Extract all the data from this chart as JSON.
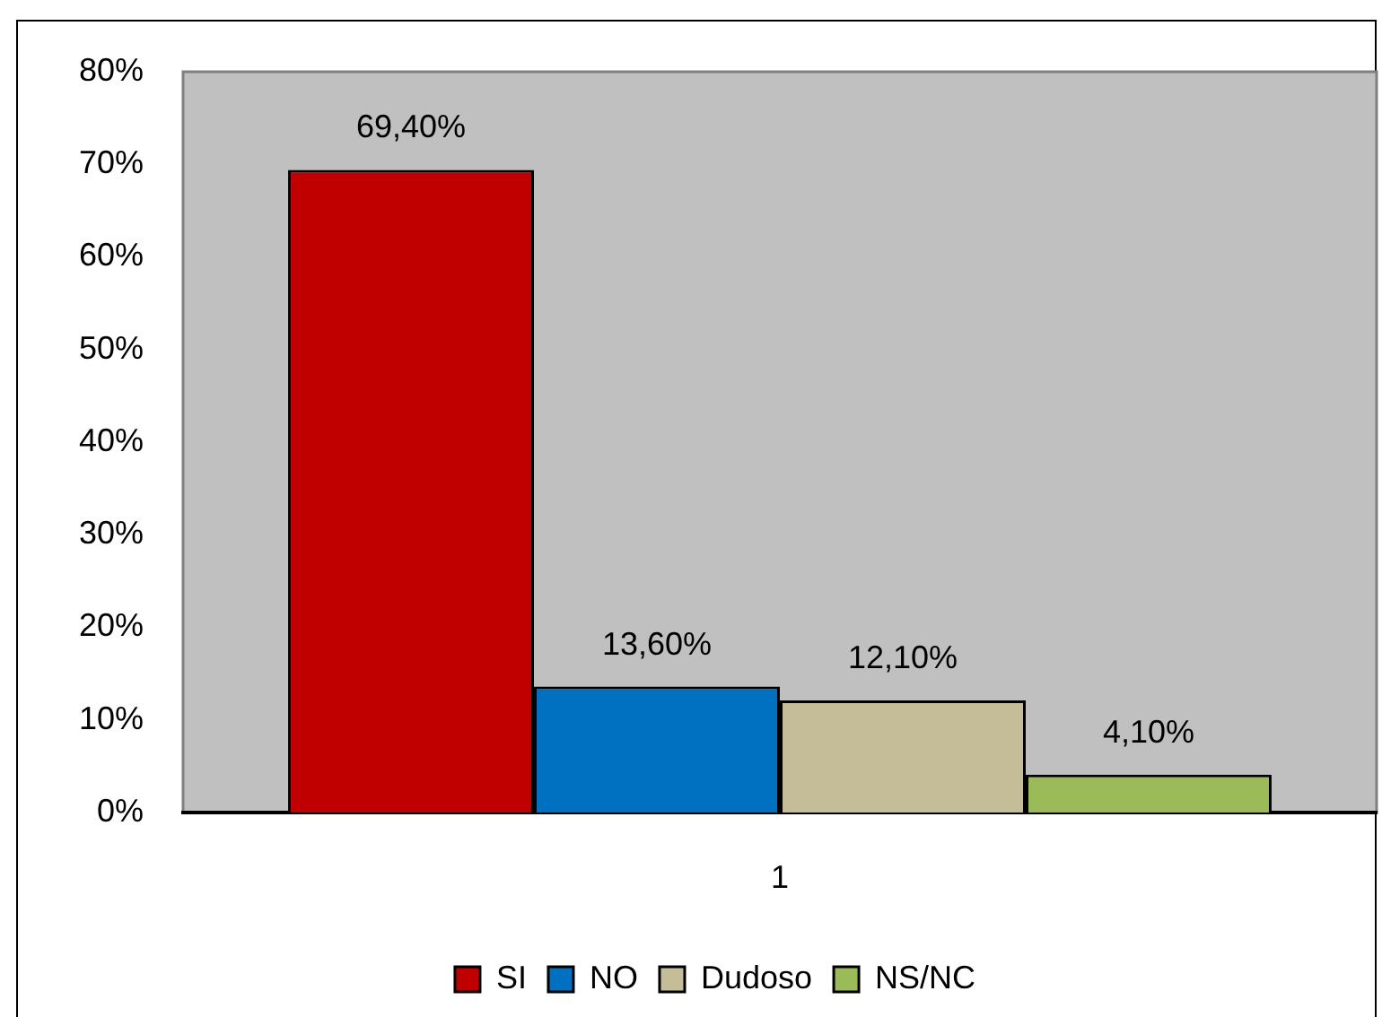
{
  "chart_data": {
    "type": "bar",
    "categories": [
      "1"
    ],
    "series": [
      {
        "name": "SI",
        "color": "#c00000",
        "values": [
          69.4
        ],
        "value_labels": [
          "69,40%"
        ]
      },
      {
        "name": "NO",
        "color": "#0070c0",
        "values": [
          13.6
        ],
        "value_labels": [
          "13,60%"
        ]
      },
      {
        "name": "Dudoso",
        "color": "#c4bd97",
        "values": [
          12.1
        ],
        "value_labels": [
          "12,10%"
        ]
      },
      {
        "name": "NS/NC",
        "color": "#9bbb59",
        "values": [
          4.1
        ],
        "value_labels": [
          "4,10%"
        ]
      }
    ],
    "ylim": [
      0,
      80
    ],
    "yticks": [
      {
        "value": 0,
        "label": "0%"
      },
      {
        "value": 10,
        "label": "10%"
      },
      {
        "value": 20,
        "label": "20%"
      },
      {
        "value": 30,
        "label": "30%"
      },
      {
        "value": 40,
        "label": "40%"
      },
      {
        "value": 50,
        "label": "50%"
      },
      {
        "value": 60,
        "label": "60%"
      },
      {
        "value": 70,
        "label": "70%"
      },
      {
        "value": 80,
        "label": "80%"
      }
    ],
    "grid": false,
    "legend": "bottom"
  }
}
